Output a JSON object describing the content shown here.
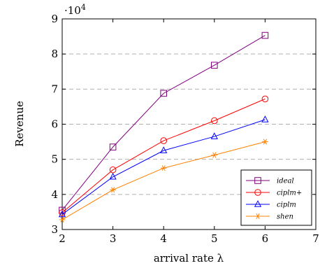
{
  "chart_data": {
    "type": "line",
    "xlabel": "arrival rate λ",
    "ylabel": "Revenue",
    "y_multiplier_label": "·10",
    "y_multiplier_exp": "4",
    "xlim": [
      2,
      7
    ],
    "ylim": [
      3,
      9
    ],
    "x_ticks": [
      "2",
      "3",
      "4",
      "5",
      "6",
      "7"
    ],
    "y_ticks": [
      "3",
      "4",
      "5",
      "6",
      "7",
      "8",
      "9"
    ],
    "grid": "horizontal-dashed",
    "legend_position": "bottom-right",
    "x": [
      2,
      3,
      4,
      5,
      6
    ],
    "series": [
      {
        "name": "ideal",
        "color": "#800080",
        "marker": "square",
        "values": [
          3.55,
          5.35,
          6.88,
          7.68,
          8.53
        ]
      },
      {
        "name": "ciplm+",
        "color": "#ff0000",
        "marker": "circle",
        "values": [
          3.48,
          4.7,
          5.53,
          6.1,
          6.72
        ]
      },
      {
        "name": "ciplm",
        "color": "#0000ff",
        "marker": "triangle",
        "values": [
          3.43,
          4.5,
          5.25,
          5.65,
          6.13
        ]
      },
      {
        "name": "shen",
        "color": "#ff8000",
        "marker": "star",
        "values": [
          3.28,
          4.13,
          4.75,
          5.12,
          5.5
        ]
      }
    ]
  }
}
